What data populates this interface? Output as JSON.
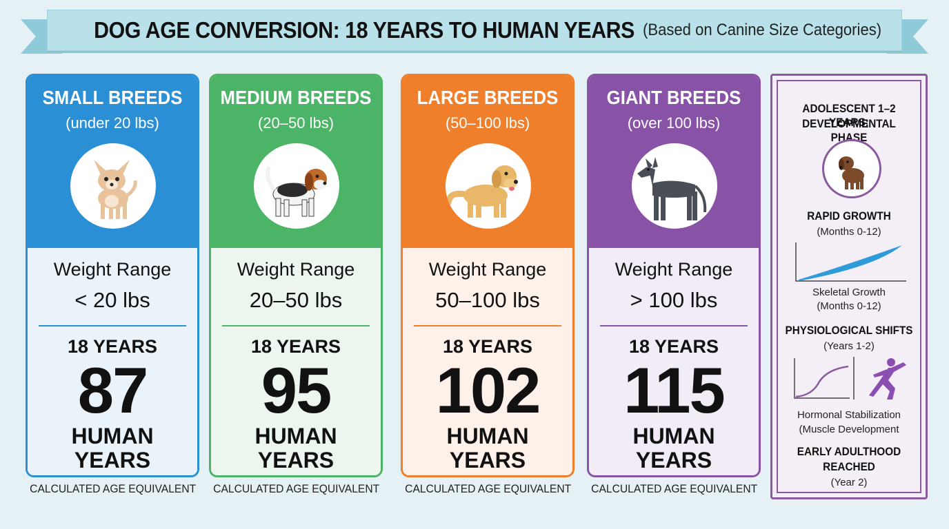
{
  "header": {
    "title": "DOG AGE CONVERSION: 18 YEARS TO HUMAN YEARS",
    "subtitle": "(Based on Canine Size Categories)"
  },
  "cards": [
    {
      "name": "SMALL BREEDS",
      "range": "(under 20 lbs)",
      "weight_label": "Weight Range",
      "weight_value": "< 20 lbs",
      "dog_years": "18 YEARS",
      "human_years": "87",
      "human_label_1": "HUMAN",
      "human_label_2": "YEARS",
      "caption": "CALCULATED AGE EQUIVALENT",
      "icon": "chihuahua-icon",
      "color": "#2a8fd4",
      "light": "#eaf3fa"
    },
    {
      "name": "MEDIUM BREEDS",
      "range": "(20–50 lbs)",
      "weight_label": "Weight Range",
      "weight_value": "20–50 lbs",
      "dog_years": "18 YEARS",
      "human_years": "95",
      "human_label_1": "HUMAN",
      "human_label_2": "YEARS",
      "caption": "CALCULATED AGE EQUIVALENT",
      "icon": "beagle-icon",
      "color": "#4cb466",
      "light": "#ecf6ee"
    },
    {
      "name": "LARGE BREEDS",
      "range": "(50–100 lbs)",
      "weight_label": "Weight Range",
      "weight_value": "50–100 lbs",
      "dog_years": "18 YEARS",
      "human_years": "102",
      "human_label_1": "HUMAN",
      "human_label_2": "YEARS",
      "caption": "CALCULATED AGE EQUIVALENT",
      "icon": "golden-retriever-icon",
      "color": "#f07f2c",
      "light": "#fdf1ea"
    },
    {
      "name": "GIANT BREEDS",
      "range": "(over 100 lbs)",
      "weight_label": "Weight Range",
      "weight_value": "> 100 lbs",
      "dog_years": "18 YEARS",
      "human_years": "115",
      "human_label_1": "HUMAN",
      "human_label_2": "YEARS",
      "caption": "CALCULATED AGE EQUIVALENT",
      "icon": "great-dane-icon",
      "color": "#8853a6",
      "light": "#f1ecf6"
    }
  ],
  "sidebar": {
    "title_1": "ADOLESCENT 1–2 YEARS:",
    "title_2": "DEVELOPMENTAL PHASE",
    "rapid_growth": "RAPID GROWTH",
    "rapid_growth_sub": "(Months 0-12)",
    "skeletal_growth": "Skeletal Growth",
    "skeletal_growth_sub": "(Months 0-12)",
    "physio": "PHYSIOLOGICAL SHIFTS",
    "physio_sub": "(Years 1-2)",
    "hormonal": "Hormonal Stabilization",
    "muscle": "(Muscle Development",
    "early_1": "EARLY ADULTHOOD",
    "early_2": "REACHED",
    "early_sub": "(Year 2)",
    "icon": "puppy-icon",
    "accent": "#8a5a9e"
  }
}
